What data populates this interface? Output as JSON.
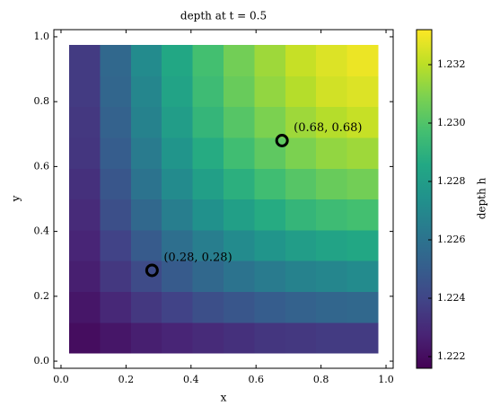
{
  "chart_data": {
    "type": "heatmap",
    "title": "depth at t = 0.5",
    "x_label": "x",
    "y_label": "y",
    "colorbar_label": "depth h",
    "colormap": "viridis",
    "x": [
      0.0725,
      0.1675,
      0.2625,
      0.3575,
      0.4525,
      0.5475,
      0.6425,
      0.7375,
      0.8325,
      0.9275
    ],
    "y": [
      0.0725,
      0.1675,
      0.2625,
      0.3575,
      0.4525,
      0.5475,
      0.6425,
      0.7375,
      0.8325,
      0.9275
    ],
    "z": [
      [
        1.222,
        1.2223,
        1.2226,
        1.2228,
        1.223,
        1.2232,
        1.2234,
        1.2235,
        1.2236,
        1.2236
      ],
      [
        1.2223,
        1.2229,
        1.2235,
        1.2239,
        1.2244,
        1.2247,
        1.225,
        1.2252,
        1.2254,
        1.2255
      ],
      [
        1.2226,
        1.2235,
        1.2242,
        1.2249,
        1.2255,
        1.226,
        1.2264,
        1.2267,
        1.2269,
        1.2271
      ],
      [
        1.2228,
        1.2239,
        1.2249,
        1.2258,
        1.2265,
        1.2271,
        1.2276,
        1.228,
        1.2283,
        1.2285
      ],
      [
        1.223,
        1.2244,
        1.2255,
        1.2265,
        1.2274,
        1.2281,
        1.2287,
        1.2292,
        1.2295,
        1.2297
      ],
      [
        1.2232,
        1.2247,
        1.226,
        1.2271,
        1.2281,
        1.2289,
        1.2296,
        1.2301,
        1.2305,
        1.2307
      ],
      [
        1.2234,
        1.225,
        1.2264,
        1.2276,
        1.2287,
        1.2296,
        1.2303,
        1.2309,
        1.2313,
        1.2315
      ],
      [
        1.2235,
        1.2252,
        1.2267,
        1.228,
        1.2292,
        1.2301,
        1.2309,
        1.2315,
        1.2319,
        1.2322
      ],
      [
        1.2236,
        1.2254,
        1.2269,
        1.2283,
        1.2295,
        1.2305,
        1.2313,
        1.2319,
        1.2324,
        1.2326
      ],
      [
        1.2236,
        1.2255,
        1.2271,
        1.2285,
        1.2297,
        1.2307,
        1.2315,
        1.2322,
        1.2326,
        1.2329
      ]
    ],
    "clim": [
      1.2216,
      1.2332
    ],
    "cticks": [
      1.222,
      1.224,
      1.226,
      1.228,
      1.23,
      1.232
    ],
    "ctick_labels": [
      "1.222",
      "1.224",
      "1.226",
      "1.228",
      "1.230",
      "1.232"
    ],
    "xlim": [
      -0.022,
      1.022
    ],
    "ylim": [
      -0.022,
      1.022
    ],
    "xticks": [
      {
        "value": 0,
        "label": "0.0"
      },
      0.2,
      0.4,
      0.6,
      0.8,
      {
        "value": 1,
        "label": "1.0"
      }
    ],
    "yticks": [
      {
        "value": 0,
        "label": "0.0"
      },
      0.2,
      0.4,
      0.6,
      0.8,
      {
        "value": 1,
        "label": "1.0"
      }
    ],
    "markers": [
      {
        "x": 0.28,
        "y": 0.28,
        "label": "(0.28, 0.28)"
      },
      {
        "x": 0.68,
        "y": 0.68,
        "label": "(0.68, 0.68)"
      }
    ]
  }
}
